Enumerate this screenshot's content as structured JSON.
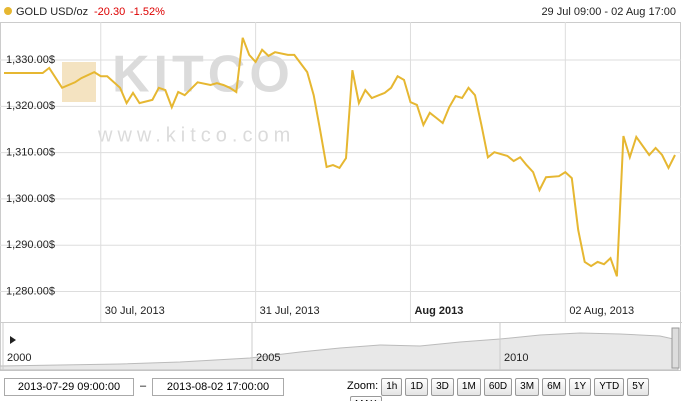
{
  "header": {
    "symbol": "GOLD USD/oz",
    "change": "-20.30",
    "change_pct": "-1.52%",
    "range": "29 Jul 09:00 - 02 Aug 17:00"
  },
  "watermark": {
    "brand": "KITCO",
    "url": "www.kitco.com"
  },
  "chart_data": {
    "type": "line",
    "x": [
      "2013-07-29 09:00",
      "2013-07-29 15:00",
      "2013-07-29 16:00",
      "2013-07-29 18:00",
      "2013-07-29 20:00",
      "2013-07-29 21:00",
      "2013-07-29 23:00",
      "2013-07-30 00:00",
      "2013-07-30 01:00",
      "2013-07-30 03:00",
      "2013-07-30 04:00",
      "2013-07-30 05:00",
      "2013-07-30 06:00",
      "2013-07-30 08:00",
      "2013-07-30 09:00",
      "2013-07-30 10:00",
      "2013-07-30 11:00",
      "2013-07-30 12:00",
      "2013-07-30 13:00",
      "2013-07-30 15:00",
      "2013-07-30 17:00",
      "2013-07-30 18:00",
      "2013-07-30 19:00",
      "2013-07-30 20:00",
      "2013-07-30 21:00",
      "2013-07-30 22:00",
      "2013-07-30 23:00",
      "2013-07-31 00:00",
      "2013-07-31 01:00",
      "2013-07-31 02:00",
      "2013-07-31 03:00",
      "2013-07-31 05:00",
      "2013-07-31 06:00",
      "2013-07-31 08:00",
      "2013-07-31 09:00",
      "2013-07-31 10:00",
      "2013-07-31 11:00",
      "2013-07-31 12:00",
      "2013-07-31 13:00",
      "2013-07-31 14:00",
      "2013-07-31 15:00",
      "2013-07-31 16:00",
      "2013-07-31 17:00",
      "2013-07-31 18:00",
      "2013-07-31 20:00",
      "2013-07-31 21:00",
      "2013-07-31 22:00",
      "2013-07-31 23:00",
      "2013-08-01 00:00",
      "2013-08-01 01:00",
      "2013-08-01 02:00",
      "2013-08-01 03:00",
      "2013-08-01 04:00",
      "2013-08-01 05:00",
      "2013-08-01 06:00",
      "2013-08-01 07:00",
      "2013-08-01 08:00",
      "2013-08-01 09:00",
      "2013-08-01 10:00",
      "2013-08-01 11:00",
      "2013-08-01 12:00",
      "2013-08-01 13:00",
      "2013-08-01 15:00",
      "2013-08-01 16:00",
      "2013-08-01 17:00",
      "2013-08-01 18:00",
      "2013-08-01 19:00",
      "2013-08-01 20:00",
      "2013-08-01 21:00",
      "2013-08-01 23:00",
      "2013-08-02 00:00",
      "2013-08-02 01:00",
      "2013-08-02 02:00",
      "2013-08-02 03:00",
      "2013-08-02 04:00",
      "2013-08-02 05:00",
      "2013-08-02 06:00",
      "2013-08-02 07:00",
      "2013-08-02 08:00",
      "2013-08-02 09:00",
      "2013-08-02 10:00",
      "2013-08-02 11:00",
      "2013-08-02 13:00",
      "2013-08-02 14:00",
      "2013-08-02 15:00",
      "2013-08-02 16:00",
      "2013-08-02 17:00"
    ],
    "series": [
      {
        "name": "GOLD USD/oz",
        "color": "#e6b731",
        "values": [
          1327.2,
          1327.2,
          1328.3,
          1324.0,
          1325.2,
          1326.1,
          1327.4,
          1326.5,
          1326.5,
          1324.0,
          1320.7,
          1322.9,
          1320.7,
          1321.4,
          1324.0,
          1323.5,
          1319.8,
          1323.1,
          1322.4,
          1325.2,
          1324.6,
          1325.0,
          1324.6,
          1324.0,
          1323.1,
          1334.8,
          1331.1,
          1329.6,
          1332.2,
          1330.9,
          1331.7,
          1331.1,
          1331.1,
          1327.4,
          1322.4,
          1314.9,
          1306.9,
          1307.3,
          1306.7,
          1308.8,
          1327.8,
          1320.7,
          1323.5,
          1321.8,
          1322.9,
          1324.0,
          1326.5,
          1325.7,
          1320.9,
          1320.3,
          1316.0,
          1318.6,
          1317.5,
          1316.4,
          1319.8,
          1322.2,
          1321.8,
          1324.0,
          1322.4,
          1316.0,
          1309.0,
          1310.1,
          1309.3,
          1308.2,
          1309.0,
          1307.3,
          1305.8,
          1301.9,
          1304.7,
          1304.9,
          1305.8,
          1304.5,
          1293.3,
          1286.4,
          1285.5,
          1286.4,
          1285.9,
          1287.2,
          1283.3,
          1313.6,
          1309.0,
          1313.4,
          1309.5,
          1311.0,
          1309.5,
          1306.7,
          1309.5
        ]
      }
    ],
    "xlim": [
      "2013-07-29 09:00",
      "2013-08-02 17:00"
    ],
    "xticks": [
      {
        "value": "2013-07-30 00:00",
        "label": "30 Jul, 2013"
      },
      {
        "value": "2013-07-31 00:00",
        "label": "31 Jul, 2013"
      },
      {
        "value": "2013-08-01 00:00",
        "label": "Aug 2013"
      },
      {
        "value": "2013-08-02 00:00",
        "label": "02 Aug, 2013"
      }
    ],
    "ylim": [
      1278,
      1341
    ],
    "yticks": [
      {
        "value": 1280,
        "label": "1,280.00$"
      },
      {
        "value": 1290,
        "label": "1,290.00$"
      },
      {
        "value": 1300,
        "label": "1,300.00$"
      },
      {
        "value": 1310,
        "label": "1,310.00$"
      },
      {
        "value": 1320,
        "label": "1,320.00$"
      },
      {
        "value": 1330,
        "label": "1,330.00$"
      }
    ],
    "grid": true
  },
  "navigator": {
    "labels": [
      "2000",
      "2005",
      "2010"
    ]
  },
  "range_inputs": {
    "from": "2013-07-29 09:00:00",
    "separator": "–",
    "to": "2013-08-02 17:00:00"
  },
  "zoom": {
    "label": "Zoom:",
    "buttons": [
      "1h",
      "1D",
      "3D",
      "1M",
      "60D",
      "3M",
      "6M",
      "1Y",
      "YTD",
      "5Y",
      "MAX"
    ]
  }
}
